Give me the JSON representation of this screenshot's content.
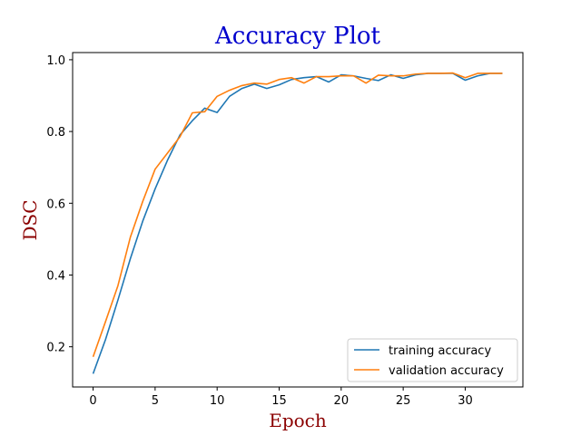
{
  "chart_data": {
    "type": "line",
    "title": "Accuracy Plot",
    "xlabel": "Epoch",
    "ylabel": "DSC",
    "xlim": [
      -1.65,
      34.65
    ],
    "ylim": [
      0.088,
      1.02
    ],
    "xticks": [
      0,
      5,
      10,
      15,
      20,
      25,
      30
    ],
    "yticks": [
      0.2,
      0.4,
      0.6,
      0.8,
      1.0
    ],
    "xtick_labels": [
      "0",
      "5",
      "10",
      "15",
      "20",
      "25",
      "30"
    ],
    "ytick_labels": [
      "0.2",
      "0.4",
      "0.6",
      "0.8",
      "1.0"
    ],
    "grid": false,
    "legend_position": "lower-right",
    "title_color": "#0000cd",
    "label_color": "#8b0000",
    "x": [
      0,
      1,
      2,
      3,
      4,
      5,
      6,
      7,
      8,
      9,
      10,
      11,
      12,
      13,
      14,
      15,
      16,
      17,
      18,
      19,
      20,
      21,
      22,
      23,
      24,
      25,
      26,
      27,
      28,
      29,
      30,
      31,
      32,
      33
    ],
    "series": [
      {
        "name": "training accuracy",
        "color": "#1f77b4",
        "values": [
          0.125,
          0.22,
          0.33,
          0.445,
          0.55,
          0.64,
          0.72,
          0.79,
          0.83,
          0.865,
          0.853,
          0.898,
          0.92,
          0.932,
          0.92,
          0.93,
          0.945,
          0.95,
          0.953,
          0.938,
          0.958,
          0.955,
          0.948,
          0.942,
          0.958,
          0.948,
          0.958,
          0.962,
          0.962,
          0.962,
          0.943,
          0.955,
          0.962,
          0.962
        ]
      },
      {
        "name": "validation accuracy",
        "color": "#ff7f0e",
        "values": [
          0.172,
          0.27,
          0.37,
          0.505,
          0.605,
          0.695,
          0.74,
          0.785,
          0.852,
          0.855,
          0.898,
          0.915,
          0.928,
          0.935,
          0.932,
          0.945,
          0.95,
          0.935,
          0.953,
          0.953,
          0.955,
          0.955,
          0.935,
          0.957,
          0.955,
          0.955,
          0.96,
          0.962,
          0.962,
          0.963,
          0.95,
          0.962,
          0.962,
          0.962
        ]
      }
    ]
  }
}
